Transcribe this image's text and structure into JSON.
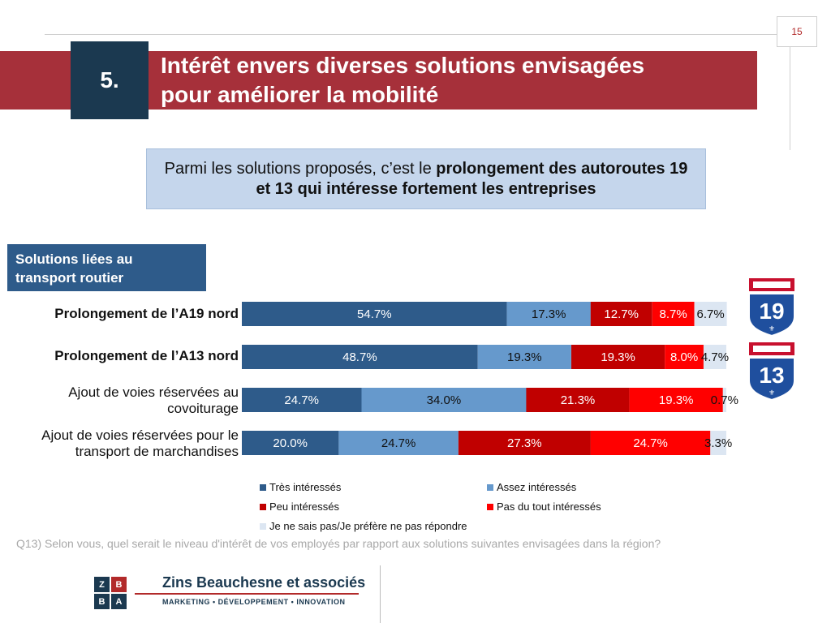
{
  "page": {
    "number": "15"
  },
  "header": {
    "section_number": "5.",
    "title_line1": "Intérêt envers diverses solutions envisagées",
    "title_line2": "pour améliorer la mobilité"
  },
  "callout": {
    "text_normal": "Parmi les solutions proposés, c’est le ",
    "text_bold": "prolongement des autoroutes 19 et 13 qui intéresse fortement les entreprises"
  },
  "section_label": {
    "line1": "Solutions liées au",
    "line2": "transport routier"
  },
  "row_labels": [
    {
      "line1": "Prolongement de l’A19 nord",
      "line2": ""
    },
    {
      "line1": "Prolongement de l’A13 nord",
      "line2": ""
    },
    {
      "line1": "Ajout de voies réservées au",
      "line2": "covoiturage"
    },
    {
      "line1": "Ajout de voies réservées pour le",
      "line2": "transport de marchandises"
    }
  ],
  "colors": {
    "tres": "#2e5b8a",
    "assez": "#6699cc",
    "peu": "#c00000",
    "pas": "#ff0000",
    "nsp": "#dce6f2",
    "band": "#a6303a",
    "navy": "#1b3950"
  },
  "chart_data": {
    "type": "bar",
    "orientation": "horizontal",
    "stacked": true,
    "normalized": true,
    "categories": [
      "Prolongement de l’A19 nord",
      "Prolongement de l’A13 nord",
      "Ajout de voies réservées au covoiturage",
      "Ajout de voies réservées pour le transport de marchandises"
    ],
    "series": [
      {
        "name": "Très intéressés",
        "color": "#2e5b8a",
        "label_color": "#ffffff",
        "values": [
          54.7,
          48.7,
          24.7,
          20.0
        ],
        "labels": [
          "54.7%",
          "48.7%",
          "24.7%",
          "20.0%"
        ]
      },
      {
        "name": "Assez intéressés",
        "color": "#6699cc",
        "label_color": "#111111",
        "values": [
          17.3,
          19.3,
          34.0,
          24.7
        ],
        "labels": [
          "17.3%",
          "19.3%",
          "34.0%",
          "24.7%"
        ]
      },
      {
        "name": "Peu intéressés",
        "color": "#c00000",
        "label_color": "#ffffff",
        "values": [
          12.7,
          19.3,
          21.3,
          27.3
        ],
        "labels": [
          "12.7%",
          "19.3%",
          "21.3%",
          "27.3%"
        ]
      },
      {
        "name": "Pas du tout intéressés",
        "color": "#ff0000",
        "label_color": "#ffffff",
        "values": [
          8.7,
          8.0,
          19.3,
          24.7
        ],
        "labels": [
          "8.7%",
          "8.0%",
          "19.3%",
          "24.7%"
        ]
      },
      {
        "name": "Je ne sais pas/Je préfère ne pas répondre",
        "color": "#dce6f2",
        "label_color": "#111111",
        "values": [
          6.7,
          4.7,
          0.7,
          3.3
        ],
        "labels": [
          "6.7%",
          "4.7%",
          "0.7%",
          "3.3%"
        ]
      }
    ],
    "xlim": [
      0,
      100
    ],
    "legend_position": "bottom"
  },
  "question": "Q13) Selon vous, quel serait le niveau d'intérêt de vos employés par rapport aux solutions suivantes envisagées dans la région?",
  "logo": {
    "letters": [
      "Z",
      "B",
      "B",
      "A"
    ],
    "name": "Zins Beauchesne et associés",
    "tagline": "MARKETING • DÉVELOPPEMENT • INNOVATION"
  },
  "shields": [
    {
      "number": "19",
      "icon": "highway-19-shield-icon"
    },
    {
      "number": "13",
      "icon": "highway-13-shield-icon"
    }
  ]
}
